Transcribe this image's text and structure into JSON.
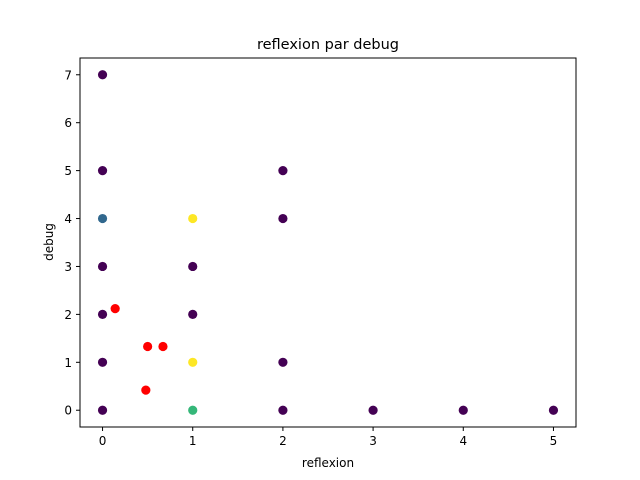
{
  "chart_data": {
    "type": "scatter",
    "title": "reflexion par debug",
    "xlabel": "reflexion",
    "ylabel": "debug",
    "xlim": [
      -0.25,
      5.25
    ],
    "ylim": [
      -0.35,
      7.35
    ],
    "xticks": [
      0,
      1,
      2,
      3,
      4,
      5
    ],
    "yticks": [
      0,
      1,
      2,
      3,
      4,
      5,
      6,
      7
    ],
    "grid": false,
    "colors": {
      "purple": "#440154",
      "blue": "#31688e",
      "teal": "#35b779",
      "yellow": "#fde725",
      "red": "#ff0000"
    },
    "points": [
      {
        "x": 0,
        "y": 7,
        "color": "purple"
      },
      {
        "x": 0,
        "y": 5,
        "color": "purple"
      },
      {
        "x": 0,
        "y": 4,
        "color": "blue"
      },
      {
        "x": 0,
        "y": 3,
        "color": "purple"
      },
      {
        "x": 0,
        "y": 2,
        "color": "purple"
      },
      {
        "x": 0,
        "y": 1,
        "color": "purple"
      },
      {
        "x": 0,
        "y": 0,
        "color": "purple"
      },
      {
        "x": 1,
        "y": 4,
        "color": "yellow"
      },
      {
        "x": 1,
        "y": 3,
        "color": "purple"
      },
      {
        "x": 1,
        "y": 2,
        "color": "purple"
      },
      {
        "x": 1,
        "y": 1,
        "color": "yellow"
      },
      {
        "x": 1,
        "y": 0,
        "color": "teal"
      },
      {
        "x": 2,
        "y": 5,
        "color": "purple"
      },
      {
        "x": 2,
        "y": 4,
        "color": "purple"
      },
      {
        "x": 2,
        "y": 1,
        "color": "purple"
      },
      {
        "x": 2,
        "y": 0,
        "color": "purple"
      },
      {
        "x": 3,
        "y": 0,
        "color": "purple"
      },
      {
        "x": 4,
        "y": 0,
        "color": "purple"
      },
      {
        "x": 5,
        "y": 0,
        "color": "purple"
      },
      {
        "x": 0.14,
        "y": 2.12,
        "color": "red"
      },
      {
        "x": 0.5,
        "y": 1.33,
        "color": "red"
      },
      {
        "x": 0.67,
        "y": 1.33,
        "color": "red"
      },
      {
        "x": 0.48,
        "y": 0.42,
        "color": "red"
      }
    ]
  }
}
